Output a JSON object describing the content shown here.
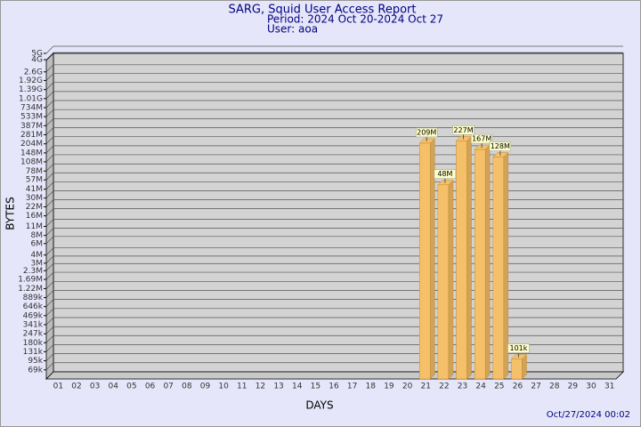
{
  "chart_data": {
    "type": "bar",
    "title": "SARG, Squid User Access Report",
    "subtitle": [
      "Period: 2024 Oct 20-2024 Oct 27",
      "User: aoa"
    ],
    "x_label": "DAYS",
    "y_label": "BYTES",
    "footer": "Oct/27/2024 00:02",
    "categories": [
      "01",
      "02",
      "03",
      "04",
      "05",
      "06",
      "07",
      "08",
      "09",
      "10",
      "11",
      "12",
      "13",
      "14",
      "15",
      "16",
      "17",
      "18",
      "19",
      "20",
      "21",
      "22",
      "23",
      "24",
      "25",
      "26",
      "27",
      "28",
      "29",
      "30",
      "31"
    ],
    "values": [
      null,
      null,
      null,
      null,
      null,
      null,
      null,
      null,
      null,
      null,
      null,
      null,
      null,
      null,
      null,
      null,
      null,
      null,
      null,
      null,
      209000000,
      48000000,
      227000000,
      167000000,
      128000000,
      101000,
      null,
      null,
      null,
      null,
      null
    ],
    "value_labels": [
      null,
      null,
      null,
      null,
      null,
      null,
      null,
      null,
      null,
      null,
      null,
      null,
      null,
      null,
      null,
      null,
      null,
      null,
      null,
      null,
      "209M",
      "48M",
      "227M",
      "167M",
      "128M",
      "101k",
      null,
      null,
      null,
      null,
      null
    ],
    "color": "#f5c06a",
    "log_scale": true,
    "grid": true,
    "ylim": [
      50000,
      5000000000
    ],
    "yticks": [
      {
        "value": 69000,
        "label": "69k"
      },
      {
        "value": 95000,
        "label": "95k"
      },
      {
        "value": 131000,
        "label": "131k"
      },
      {
        "value": 180000,
        "label": "180k"
      },
      {
        "value": 247000,
        "label": "247k"
      },
      {
        "value": 341000,
        "label": "341k"
      },
      {
        "value": 469000,
        "label": "469k"
      },
      {
        "value": 646000,
        "label": "646k"
      },
      {
        "value": 889000,
        "label": "889k"
      },
      {
        "value": 1220000,
        "label": "1.22M"
      },
      {
        "value": 1690000,
        "label": "1.69M"
      },
      {
        "value": 2300000,
        "label": "2.3M"
      },
      {
        "value": 3000000,
        "label": "3M"
      },
      {
        "value": 4000000,
        "label": "4M"
      },
      {
        "value": 6000000,
        "label": "6M"
      },
      {
        "value": 8000000,
        "label": "8M"
      },
      {
        "value": 11000000,
        "label": "11M"
      },
      {
        "value": 16000000,
        "label": "16M"
      },
      {
        "value": 22000000,
        "label": "22M"
      },
      {
        "value": 30000000,
        "label": "30M"
      },
      {
        "value": 41000000,
        "label": "41M"
      },
      {
        "value": 57000000,
        "label": "57M"
      },
      {
        "value": 78000000,
        "label": "78M"
      },
      {
        "value": 108000000,
        "label": "108M"
      },
      {
        "value": 148000000,
        "label": "148M"
      },
      {
        "value": 204000000,
        "label": "204M"
      },
      {
        "value": 281000000,
        "label": "281M"
      },
      {
        "value": 387000000,
        "label": "387M"
      },
      {
        "value": 533000000,
        "label": "533M"
      },
      {
        "value": 734000000,
        "label": "734M"
      },
      {
        "value": 1010000000,
        "label": "1.01G"
      },
      {
        "value": 1390000000,
        "label": "1.39G"
      },
      {
        "value": 1920000000,
        "label": "1.92G"
      },
      {
        "value": 2600000000,
        "label": "2.6G"
      },
      {
        "value": 4000000000,
        "label": "4G"
      },
      {
        "value": 5000000000,
        "label": "5G"
      }
    ]
  }
}
